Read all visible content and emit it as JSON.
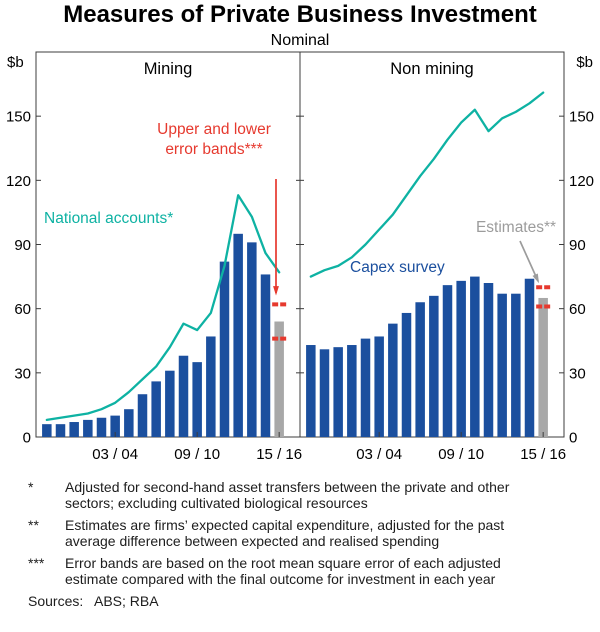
{
  "title": "Measures of Private Business Investment",
  "subtitle": "Nominal",
  "units": {
    "left": "$b",
    "right": "$b"
  },
  "colors": {
    "line": "#0eb2a3",
    "bar": "#1b4f9e",
    "estimate": "#a8a8a8",
    "error": "#e6392e",
    "frame": "#3c3c3c",
    "annotation_gray": "#9c9c9c"
  },
  "chart_data": {
    "type": "bar+line",
    "ylim": [
      0,
      180
    ],
    "yticks": [
      0,
      30,
      60,
      90,
      120,
      150
    ],
    "x_tick_indices": [
      5,
      11,
      17
    ],
    "panels": [
      {
        "label": "Mining",
        "x_ticks": [
          "03 / 04",
          "09 / 10",
          "15 / 16"
        ],
        "capex_bars": [
          6,
          6,
          7,
          8,
          9,
          10,
          13,
          20,
          26,
          31,
          38,
          35,
          47,
          82,
          95,
          91,
          76
        ],
        "estimate": 54,
        "error_band_upper": 62,
        "error_band_lower": 46,
        "national_accounts_line": [
          8,
          9,
          10,
          11,
          13,
          16,
          21,
          27,
          33,
          42,
          53,
          50,
          58,
          80,
          113,
          103,
          86,
          77
        ]
      },
      {
        "label": "Non mining",
        "x_ticks": [
          "03 / 04",
          "09 / 10",
          "15 / 16"
        ],
        "capex_bars": [
          43,
          41,
          42,
          43,
          46,
          47,
          53,
          58,
          63,
          66,
          71,
          73,
          75,
          72,
          67,
          67,
          74
        ],
        "estimate": 65,
        "error_band_upper": 70,
        "error_band_lower": 61,
        "national_accounts_line": [
          75,
          78,
          80,
          84,
          90,
          97,
          104,
          113,
          122,
          130,
          139,
          147,
          153,
          143,
          149,
          152,
          156,
          161
        ]
      }
    ],
    "series_labels": {
      "line": "National accounts*",
      "bars": "Capex survey",
      "estimate": "Estimates**",
      "error_bands": "Upper and lower error bands***"
    }
  },
  "footnotes": [
    {
      "marker": "*",
      "text": "Adjusted for second-hand asset transfers between the private and other sectors; excluding cultivated biological resources"
    },
    {
      "marker": "**",
      "text": "Estimates are firms’ expected capital expenditure, adjusted for the past average difference between expected and realised spending"
    },
    {
      "marker": "***",
      "text": "Error bands are based on the root mean square error of each adjusted estimate compared with the final outcome for investment in each year"
    }
  ],
  "sources": {
    "label": "Sources:",
    "value": "ABS; RBA"
  }
}
